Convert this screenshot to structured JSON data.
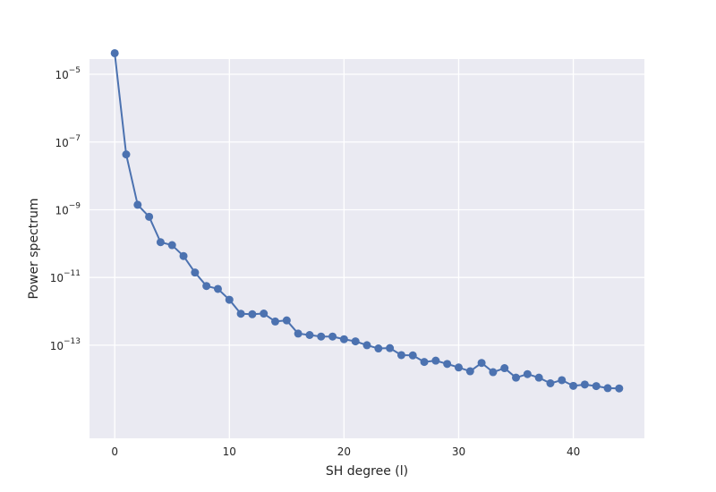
{
  "chart_data": {
    "type": "line",
    "title": "",
    "xlabel": "SH degree (l)",
    "ylabel": "Power spectrum",
    "xlim": [
      -2.2,
      46.2
    ],
    "ylim_log10": [
      -15.75,
      -4.55
    ],
    "yscale": "log",
    "grid": true,
    "legend": "none",
    "x_ticks": [
      0,
      10,
      20,
      30,
      40
    ],
    "y_ticks": [
      {
        "base": "10",
        "exp": "−5",
        "log10": -5
      },
      {
        "base": "10",
        "exp": "−7",
        "log10": -7
      },
      {
        "base": "10",
        "exp": "−9",
        "log10": -9
      },
      {
        "base": "10",
        "exp": "−11",
        "log10": -11
      },
      {
        "base": "10",
        "exp": "−13",
        "log10": -13
      }
    ],
    "series": [
      {
        "color": "#4c72b0",
        "marker": "circle",
        "x": [
          0,
          1,
          2,
          3,
          4,
          5,
          6,
          7,
          8,
          9,
          10,
          11,
          12,
          13,
          14,
          15,
          16,
          17,
          18,
          19,
          20,
          21,
          22,
          23,
          24,
          25,
          26,
          27,
          28,
          29,
          30,
          31,
          32,
          33,
          34,
          35,
          36,
          37,
          38,
          39,
          40,
          41,
          42,
          43,
          44
        ],
        "y": [
          4.2e-05,
          4.3e-08,
          1.4e-09,
          6.2e-10,
          1.1e-10,
          9e-11,
          4.3e-11,
          1.4e-11,
          5.6e-12,
          4.6e-12,
          2.2e-12,
          8.5e-13,
          8.2e-13,
          8.6e-13,
          5e-13,
          5.4e-13,
          2.2e-13,
          2e-13,
          1.8e-13,
          1.8e-13,
          1.5e-13,
          1.3e-13,
          1e-13,
          8e-14,
          8.2e-14,
          5.1e-14,
          5e-14,
          3.2e-14,
          3.5e-14,
          2.8e-14,
          2.2e-14,
          1.7e-14,
          3e-14,
          1.6e-14,
          2.1e-14,
          1.1e-14,
          1.4e-14,
          1.1e-14,
          7.5e-15,
          9.3e-15,
          6.3e-15,
          6.9e-15,
          6.2e-15,
          5.4e-15,
          5.3e-15
        ]
      }
    ]
  }
}
